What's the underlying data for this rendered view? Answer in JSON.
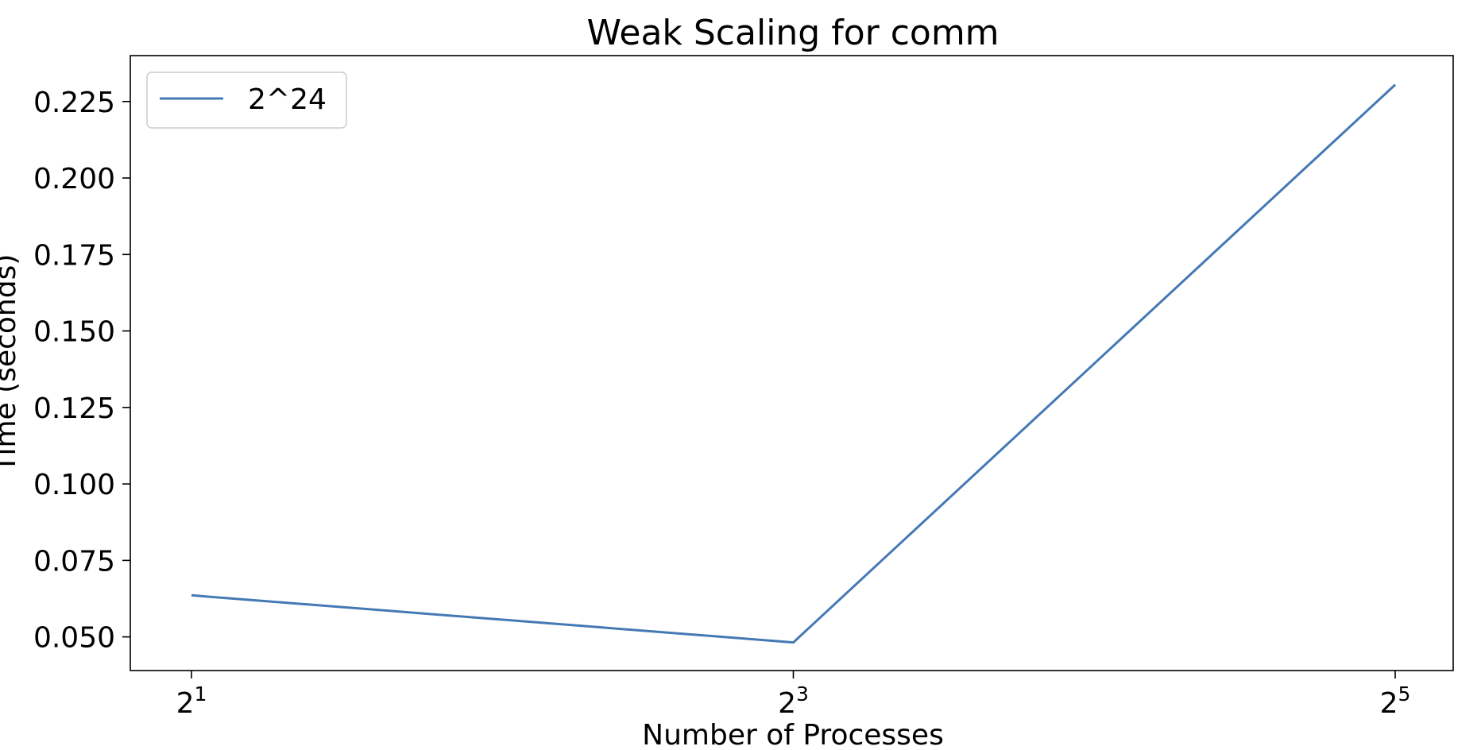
{
  "chart_data": {
    "type": "line",
    "title": "Weak Scaling for comm",
    "xlabel": "Number of Processes",
    "ylabel": "Time (seconds)",
    "x_scale": "log2",
    "x": [
      2,
      8,
      32
    ],
    "x_ticks": [
      {
        "base": "2",
        "exp": "1",
        "value": 2
      },
      {
        "base": "2",
        "exp": "3",
        "value": 8
      },
      {
        "base": "2",
        "exp": "5",
        "value": 32
      }
    ],
    "y_ticks": [
      "0.050",
      "0.075",
      "0.100",
      "0.125",
      "0.150",
      "0.175",
      "0.200",
      "0.225"
    ],
    "ylim": [
      0.039,
      0.24
    ],
    "grid": false,
    "legend_position": "top-left",
    "series": [
      {
        "name": "2^24",
        "color": "#4479b4",
        "values": [
          0.0636,
          0.0482,
          0.2305
        ]
      }
    ]
  }
}
